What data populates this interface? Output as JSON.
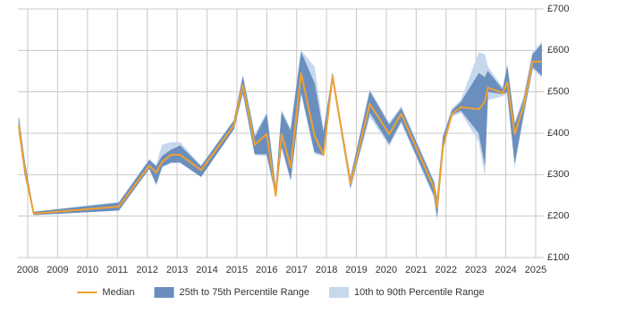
{
  "chart_data": {
    "type": "line",
    "x": [
      2007.7,
      2007.9,
      2008.2,
      2011.05,
      2012.07,
      2012.3,
      2012.5,
      2012.8,
      2013.1,
      2013.8,
      2014.9,
      2015.2,
      2015.6,
      2016.0,
      2016.3,
      2016.5,
      2016.8,
      2017.15,
      2017.6,
      2017.9,
      2018.2,
      2018.8,
      2019.45,
      2020.1,
      2020.5,
      2021.6,
      2021.7,
      2021.9,
      2022.2,
      2022.5,
      2023.1,
      2023.3,
      2023.4,
      2023.9,
      2024.05,
      2024.3,
      2024.6,
      2024.9,
      2025.2
    ],
    "series": [
      {
        "name": "Median",
        "color": "#f0a030",
        "values": [
          419,
          311,
          206,
          223,
          322,
          305,
          331,
          348,
          348,
          311,
          419,
          517,
          372,
          398,
          249,
          398,
          318,
          545,
          394,
          348,
          538,
          279,
          471,
          398,
          447,
          268,
          221,
          368,
          447,
          463,
          458,
          476,
          510,
          497,
          523,
          398,
          467,
          573,
          573
        ]
      }
    ],
    "bands": [
      {
        "name": "25th to 75th Percentile Range",
        "color": "#6a8fbe",
        "low": [
          405,
          300,
          203,
          214,
          315,
          278,
          320,
          330,
          330,
          295,
          410,
          500,
          350,
          350,
          250,
          370,
          290,
          500,
          355,
          348,
          530,
          270,
          450,
          375,
          430,
          250,
          200,
          365,
          445,
          455,
          400,
          325,
          500,
          495,
          500,
          330,
          450,
          560,
          540
        ],
        "high": [
          437,
          330,
          210,
          232,
          335,
          320,
          345,
          360,
          370,
          320,
          430,
          535,
          390,
          445,
          265,
          450,
          405,
          595,
          520,
          400,
          545,
          290,
          500,
          420,
          460,
          280,
          240,
          390,
          455,
          475,
          545,
          535,
          550,
          505,
          560,
          420,
          480,
          590,
          615
        ]
      },
      {
        "name": "10th to 90th Percentile Range",
        "color": "#c6d8ec",
        "low": [
          405,
          300,
          203,
          214,
          315,
          275,
          318,
          328,
          328,
          295,
          410,
          495,
          348,
          345,
          250,
          365,
          285,
          500,
          350,
          345,
          530,
          265,
          440,
          370,
          425,
          245,
          190,
          360,
          440,
          450,
          380,
          300,
          480,
          490,
          495,
          320,
          440,
          555,
          535
        ],
        "high": [
          437,
          330,
          210,
          234,
          338,
          322,
          372,
          378,
          378,
          322,
          432,
          540,
          398,
          450,
          268,
          455,
          410,
          600,
          560,
          405,
          545,
          295,
          505,
          425,
          465,
          285,
          245,
          395,
          460,
          480,
          595,
          590,
          560,
          510,
          565,
          425,
          490,
          595,
          620
        ]
      }
    ],
    "xlim": [
      2007.67,
      2025.27
    ],
    "xticks": [
      2008,
      2009,
      2010,
      2011,
      2012,
      2013,
      2014,
      2015,
      2016,
      2017,
      2018,
      2019,
      2020,
      2021,
      2022,
      2023,
      2024,
      2025
    ],
    "ylim": [
      100,
      700
    ],
    "yticks": [
      {
        "value": 100,
        "label": "£100"
      },
      {
        "value": 200,
        "label": "£200"
      },
      {
        "value": 300,
        "label": "£300"
      },
      {
        "value": 400,
        "label": "£400"
      },
      {
        "value": 500,
        "label": "£500"
      },
      {
        "value": 600,
        "label": "£600"
      },
      {
        "value": 700,
        "label": "£700"
      }
    ],
    "grid": true
  }
}
